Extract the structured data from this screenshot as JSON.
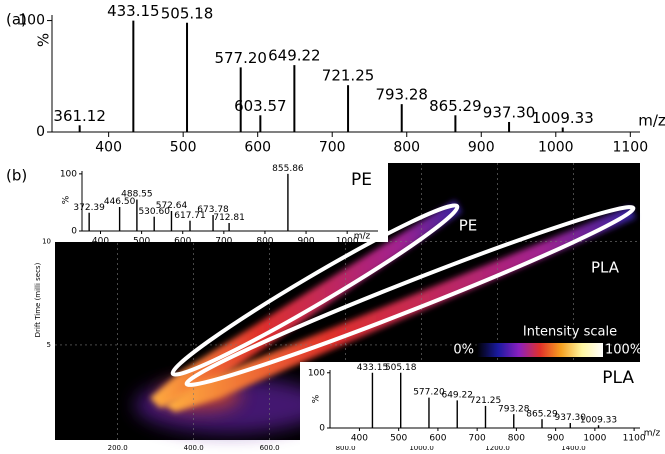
{
  "panel_labels": [
    "(a)",
    "(b)"
  ],
  "chart_data": [
    {
      "type": "spectrum",
      "x": [
        361.12,
        433.15,
        505.18,
        577.2,
        603.57,
        649.22,
        721.25,
        793.28,
        865.29,
        937.3,
        1009.33
      ],
      "x_labels": [
        "361.12",
        "433.15",
        "505.18",
        "577.20",
        "603.57",
        "649.22",
        "721.25",
        "793.28",
        "865.29",
        "937.30",
        "1009.33"
      ],
      "values": [
        6,
        100,
        98,
        58,
        15,
        60,
        42,
        25,
        15,
        9,
        4
      ],
      "xlim": [
        324,
        1113
      ],
      "ylim": [
        0,
        105
      ],
      "xticks": [
        400,
        500,
        600,
        700,
        800,
        900,
        1000,
        1100
      ],
      "yticks": [
        0,
        100
      ],
      "xlabel": "m/z",
      "ylabel": "%",
      "color": "#000000"
    },
    {
      "type": "heatmap",
      "ylabel": "Drift Time (milli secs)",
      "xlim": [
        35,
        1575
      ],
      "ylim": [
        0.4,
        13.8
      ],
      "xticks": [
        {
          "value": 200,
          "label": "200.0"
        },
        {
          "value": 400,
          "label": "400.0"
        },
        {
          "value": 600,
          "label": "600.0"
        },
        {
          "value": 800,
          "label": "800.0"
        },
        {
          "value": 1000,
          "label": "1000.0"
        },
        {
          "value": 1200,
          "label": "1200.0"
        },
        {
          "value": 1400,
          "label": "1400.0"
        }
      ],
      "yticks": [
        5,
        10
      ],
      "grid": true,
      "annotations": [
        "PE",
        "PLA"
      ],
      "colorbar_title": "Intensity scale",
      "colorbar_ticks": [
        {
          "value": 0,
          "label": "0%"
        },
        {
          "value": 100,
          "label": "100%"
        }
      ],
      "colors": [
        "#000000",
        "#1a1aa0",
        "#8a1fc0",
        "#e0302a",
        "#f5a020",
        "#fff6a0",
        "#ffffff"
      ]
    },
    {
      "type": "spectrum",
      "title": "PE",
      "x": [
        372.39,
        446.5,
        488.55,
        530.6,
        572.64,
        617.71,
        673.78,
        712.81,
        855.86
      ],
      "x_labels": [
        "372.39",
        "446.50",
        "488.55",
        "530.60",
        "572.64",
        "617.71",
        "673.78",
        "712.81",
        "855.86"
      ],
      "values": [
        32,
        42,
        55,
        25,
        35,
        18,
        28,
        14,
        100
      ],
      "xlim": [
        355,
        1075
      ],
      "ylim": [
        0,
        105
      ],
      "xticks": [
        400,
        500,
        600,
        700,
        800,
        900,
        1000
      ],
      "yticks": [
        0,
        100
      ],
      "xlabel": "m/z",
      "ylabel": "%",
      "color": "#000000"
    },
    {
      "type": "spectrum",
      "title": "PLA",
      "x": [
        433.15,
        505.18,
        577.2,
        649.22,
        721.25,
        793.28,
        865.29,
        937.3,
        1009.33
      ],
      "x_labels": [
        "433.15",
        "505.18",
        "577.20",
        "649.22",
        "721.25",
        "793.28",
        "865.29",
        "937.30",
        "1009.33"
      ],
      "values": [
        100,
        100,
        55,
        50,
        40,
        25,
        16,
        9,
        5
      ],
      "xlim": [
        325,
        1115
      ],
      "ylim": [
        0,
        105
      ],
      "xticks": [
        400,
        500,
        600,
        700,
        800,
        900,
        1000,
        1100
      ],
      "yticks": [
        0,
        100
      ],
      "xlabel": "m/z",
      "ylabel": "%",
      "color": "#000000"
    }
  ]
}
